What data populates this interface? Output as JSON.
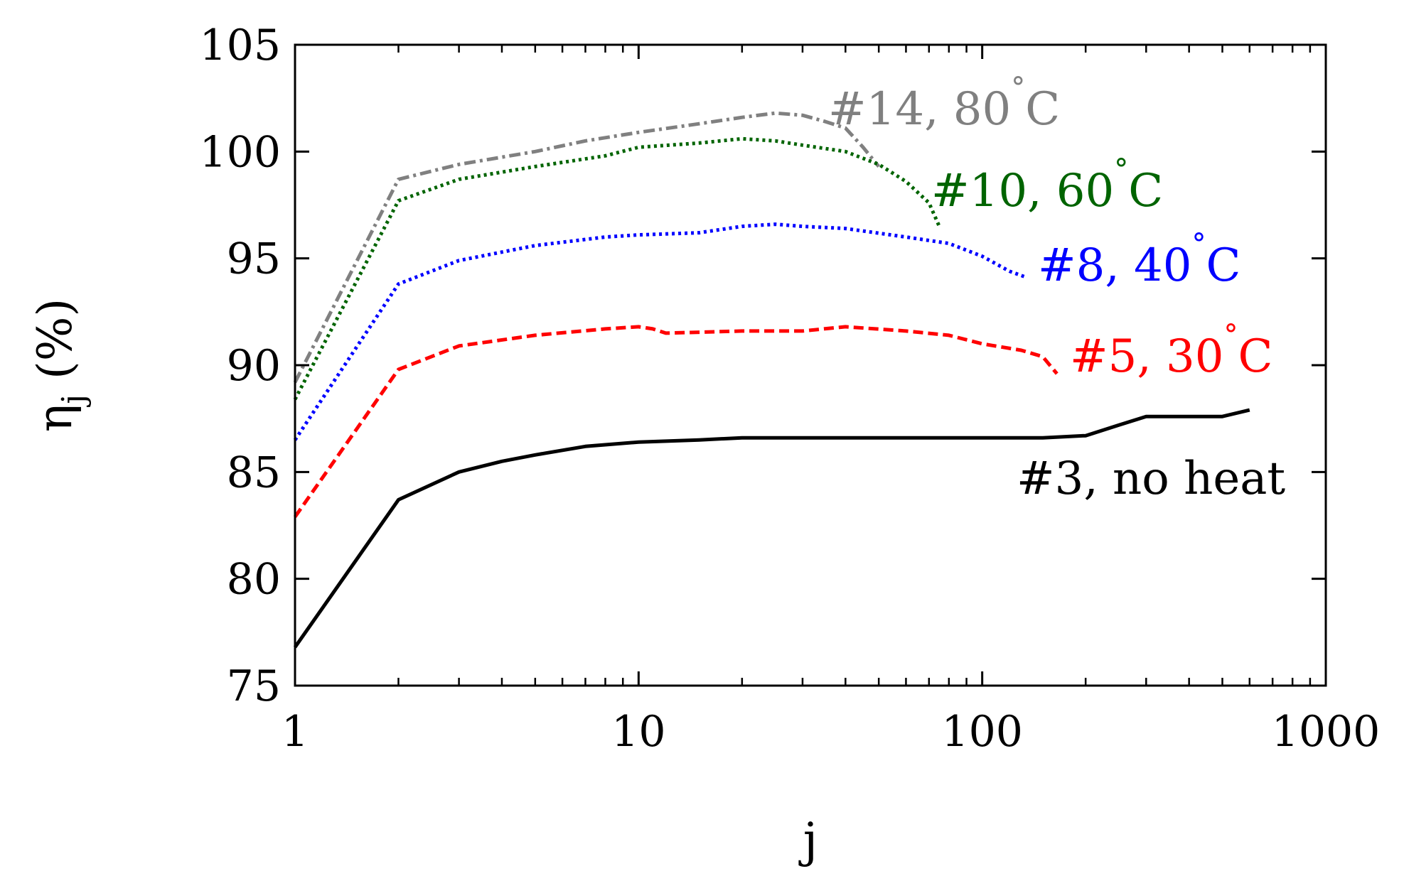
{
  "chart_data": {
    "type": "line",
    "title": "",
    "xlabel": "j",
    "ylabel": "ηj (%)",
    "ylabel_symbol": "η",
    "ylabel_sub": "j",
    "ylabel_unit": "(%)",
    "xscale": "log",
    "xlim": [
      1,
      1000
    ],
    "ylim": [
      75,
      105
    ],
    "x_ticks": [
      1,
      10,
      100,
      1000
    ],
    "x_tick_labels": [
      "1",
      "10",
      "100",
      "1000"
    ],
    "y_ticks": [
      75,
      80,
      85,
      90,
      95,
      100,
      105
    ],
    "y_tick_labels": [
      "75",
      "80",
      "85",
      "90",
      "95",
      "100",
      "105"
    ],
    "grid": false,
    "series": [
      {
        "name": "#14, 80°C",
        "label_text": "#14, 80",
        "label_unit": "C",
        "color": "#808080",
        "dash": "dashdot",
        "points": [
          [
            1,
            89.2
          ],
          [
            2,
            98.7
          ],
          [
            3,
            99.4
          ],
          [
            5,
            100.0
          ],
          [
            7,
            100.5
          ],
          [
            10,
            100.9
          ],
          [
            15,
            101.3
          ],
          [
            20,
            101.6
          ],
          [
            25,
            101.8
          ],
          [
            30,
            101.7
          ],
          [
            35,
            101.4
          ],
          [
            40,
            101.1
          ],
          [
            45,
            100.2
          ],
          [
            50,
            99.3
          ]
        ]
      },
      {
        "name": "#10, 60°C",
        "label_text": "#10, 60",
        "label_unit": "C",
        "color": "#006400",
        "dash": "dotted",
        "points": [
          [
            1,
            88.4
          ],
          [
            2,
            97.7
          ],
          [
            3,
            98.7
          ],
          [
            5,
            99.3
          ],
          [
            8,
            99.8
          ],
          [
            10,
            100.2
          ],
          [
            15,
            100.4
          ],
          [
            20,
            100.6
          ],
          [
            25,
            100.5
          ],
          [
            30,
            100.3
          ],
          [
            40,
            100.0
          ],
          [
            50,
            99.4
          ],
          [
            60,
            98.6
          ],
          [
            70,
            97.6
          ],
          [
            75,
            96.5
          ]
        ]
      },
      {
        "name": "#8, 40°C",
        "label_text": "#8, 40",
        "label_unit": "C",
        "color": "#0000ff",
        "dash": "dotted",
        "points": [
          [
            1,
            86.5
          ],
          [
            2,
            93.8
          ],
          [
            3,
            94.9
          ],
          [
            5,
            95.6
          ],
          [
            8,
            96.0
          ],
          [
            10,
            96.1
          ],
          [
            15,
            96.2
          ],
          [
            20,
            96.5
          ],
          [
            25,
            96.6
          ],
          [
            30,
            96.5
          ],
          [
            40,
            96.4
          ],
          [
            60,
            96.0
          ],
          [
            80,
            95.7
          ],
          [
            100,
            95.1
          ],
          [
            120,
            94.4
          ],
          [
            135,
            94.1
          ]
        ]
      },
      {
        "name": "#5, 30°C",
        "label_text": "#5, 30",
        "label_unit": "C",
        "color": "#ff0000",
        "dash": "dashed",
        "points": [
          [
            1,
            82.9
          ],
          [
            2,
            89.8
          ],
          [
            3,
            90.9
          ],
          [
            5,
            91.4
          ],
          [
            8,
            91.7
          ],
          [
            10,
            91.8
          ],
          [
            11,
            91.7
          ],
          [
            12,
            91.5
          ],
          [
            20,
            91.6
          ],
          [
            30,
            91.6
          ],
          [
            40,
            91.8
          ],
          [
            60,
            91.6
          ],
          [
            80,
            91.4
          ],
          [
            100,
            91.0
          ],
          [
            130,
            90.7
          ],
          [
            150,
            90.4
          ],
          [
            165,
            89.6
          ]
        ]
      },
      {
        "name": "#3, no heat",
        "label_text": "#3, no heat",
        "label_unit": "",
        "color": "#000000",
        "dash": "solid",
        "points": [
          [
            1,
            76.8
          ],
          [
            2,
            83.7
          ],
          [
            3,
            85.0
          ],
          [
            4,
            85.5
          ],
          [
            5,
            85.8
          ],
          [
            7,
            86.2
          ],
          [
            10,
            86.4
          ],
          [
            15,
            86.5
          ],
          [
            20,
            86.6
          ],
          [
            50,
            86.6
          ],
          [
            100,
            86.6
          ],
          [
            150,
            86.6
          ],
          [
            200,
            86.7
          ],
          [
            250,
            87.2
          ],
          [
            300,
            87.6
          ],
          [
            400,
            87.6
          ],
          [
            500,
            87.6
          ],
          [
            600,
            87.9
          ]
        ]
      }
    ]
  }
}
